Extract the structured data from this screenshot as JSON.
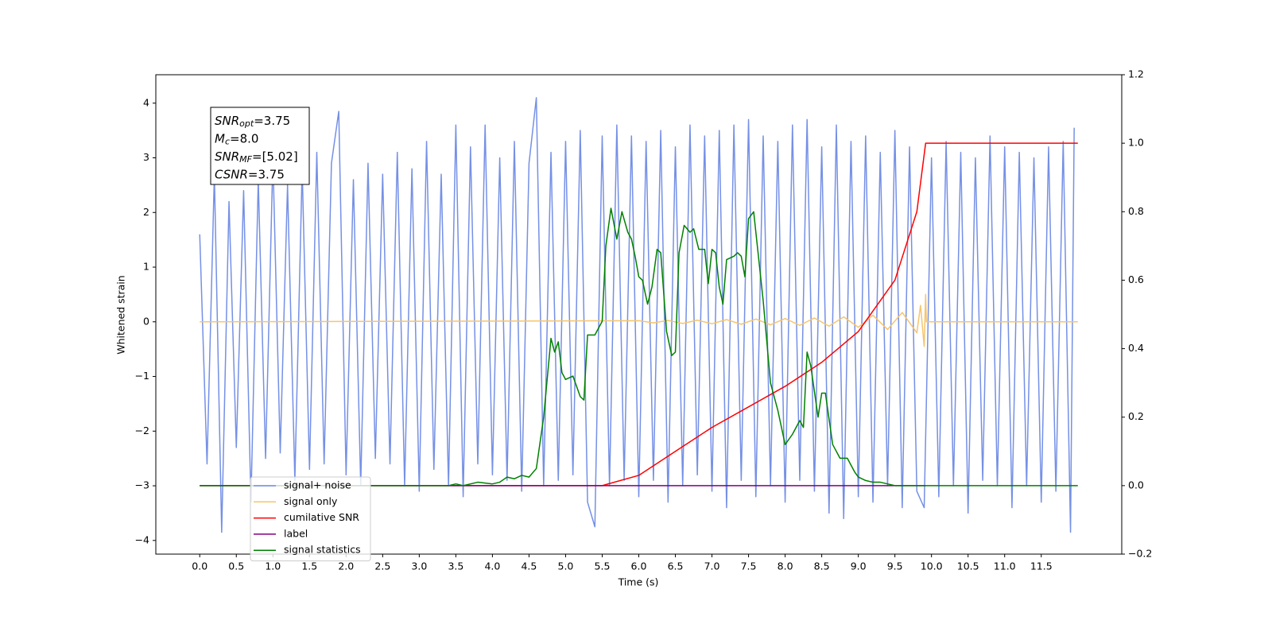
{
  "chart_data": {
    "type": "line",
    "xlabel": "Time (s)",
    "ylabel": "Whitened strain",
    "xlim": [
      -0.6,
      12.6
    ],
    "ylim": [
      -4.25,
      4.52
    ],
    "y2lim": [
      -0.2,
      1.2
    ],
    "xticks": [
      {
        "value": 0,
        "label": "0.0"
      },
      {
        "value": 0.5,
        "label": "0.5"
      },
      {
        "value": 1,
        "label": "1.0"
      },
      {
        "value": 1.5,
        "label": "1.5"
      },
      {
        "value": 2,
        "label": "2.0"
      },
      {
        "value": 2.5,
        "label": "2.5"
      },
      {
        "value": 3,
        "label": "3.0"
      },
      {
        "value": 3.5,
        "label": "3.5"
      },
      {
        "value": 4,
        "label": "4.0"
      },
      {
        "value": 4.5,
        "label": "4.5"
      },
      {
        "value": 5,
        "label": "5.0"
      },
      {
        "value": 5.5,
        "label": "5.5"
      },
      {
        "value": 6,
        "label": "6.0"
      },
      {
        "value": 6.5,
        "label": "6.5"
      },
      {
        "value": 7,
        "label": "7.0"
      },
      {
        "value": 7.5,
        "label": "7.5"
      },
      {
        "value": 8,
        "label": "8.0"
      },
      {
        "value": 8.5,
        "label": "8.5"
      },
      {
        "value": 9,
        "label": "9.0"
      },
      {
        "value": 9.5,
        "label": "9.5"
      },
      {
        "value": 10,
        "label": "10.0"
      },
      {
        "value": 10.5,
        "label": "10.5"
      },
      {
        "value": 11,
        "label": "11.0"
      },
      {
        "value": 11.5,
        "label": "11.5"
      }
    ],
    "yticks": [
      {
        "value": -4,
        "label": "−4"
      },
      {
        "value": -3,
        "label": "−3"
      },
      {
        "value": -2,
        "label": "−2"
      },
      {
        "value": -1,
        "label": "−1"
      },
      0,
      1,
      2,
      3,
      4
    ],
    "y2ticks": [
      {
        "value": -0.2,
        "label": "−0.2"
      },
      {
        "value": 0,
        "label": "0.0"
      },
      {
        "value": 0.2,
        "label": "0.2"
      },
      {
        "value": 0.4,
        "label": "0.4"
      },
      {
        "value": 0.6,
        "label": "0.6"
      },
      {
        "value": 0.8,
        "label": "0.8"
      },
      {
        "value": 1,
        "label": "1.0"
      },
      {
        "value": 1.2,
        "label": "1.2"
      }
    ],
    "annotation": [
      {
        "main": "SNR",
        "sub": "opt",
        "rest": "=3.75"
      },
      {
        "main": "M",
        "sub": "c",
        "rest": "=8.0"
      },
      {
        "main": "SNR",
        "sub": "MF",
        "rest": "=[5.02]"
      },
      {
        "main": "CSNR",
        "rest": "=3.75"
      }
    ],
    "legend": "lower left",
    "series": [
      {
        "name": "signal+ noise",
        "color": "#7590e6",
        "x": [
          0,
          0.1,
          0.2,
          0.3,
          0.4,
          0.5,
          0.6,
          0.7,
          0.8,
          0.9,
          1,
          1.1,
          1.2,
          1.3,
          1.4,
          1.5,
          1.6,
          1.7,
          1.8,
          1.9,
          2,
          2.1,
          2.2,
          2.3,
          2.4,
          2.5,
          2.6,
          2.7,
          2.8,
          2.9,
          3,
          3.1,
          3.2,
          3.3,
          3.4,
          3.5,
          3.6,
          3.7,
          3.8,
          3.9,
          4,
          4.1,
          4.2,
          4.3,
          4.4,
          4.5,
          4.6,
          4.7,
          4.8,
          4.9,
          5,
          5.1,
          5.2,
          5.3,
          5.4,
          5.5,
          5.6,
          5.7,
          5.8,
          5.9,
          6,
          6.1,
          6.2,
          6.3,
          6.4,
          6.5,
          6.6,
          6.7,
          6.8,
          6.9,
          7,
          7.1,
          7.2,
          7.3,
          7.4,
          7.5,
          7.6,
          7.7,
          7.8,
          7.9,
          8,
          8.1,
          8.2,
          8.3,
          8.4,
          8.5,
          8.6,
          8.7,
          8.8,
          8.9,
          9,
          9.1,
          9.2,
          9.3,
          9.4,
          9.5,
          9.6,
          9.7,
          9.8,
          9.9,
          10,
          10.1,
          10.2,
          10.3,
          10.4,
          10.5,
          10.6,
          10.7,
          10.8,
          10.9,
          11,
          11.1,
          11.2,
          11.3,
          11.4,
          11.5,
          11.6,
          11.7,
          11.8,
          11.9,
          11.95
        ],
        "values": [
          1.6,
          -2.6,
          2.7,
          -3.85,
          2.2,
          -2.3,
          2.4,
          -3.3,
          2.6,
          -2.5,
          3.0,
          -2.4,
          2.5,
          -2.9,
          2.8,
          -2.7,
          3.1,
          -2.6,
          2.9,
          3.85,
          -2.8,
          2.6,
          -3.0,
          2.9,
          -2.5,
          2.7,
          -2.6,
          3.1,
          -3.0,
          2.8,
          -3.1,
          3.3,
          -2.7,
          2.7,
          -3.0,
          3.6,
          -3.2,
          3.2,
          -2.6,
          3.6,
          -2.8,
          3.0,
          -2.9,
          3.3,
          -3.1,
          2.9,
          4.1,
          -3.0,
          3.1,
          -2.9,
          3.3,
          -2.8,
          3.5,
          -3.3,
          -3.75,
          3.4,
          -3.0,
          3.6,
          -2.9,
          3.4,
          -3.2,
          3.3,
          -2.9,
          3.5,
          -3.3,
          3.2,
          -3.0,
          3.6,
          -2.8,
          3.4,
          -3.1,
          3.5,
          -3.4,
          3.6,
          -2.9,
          3.7,
          -3.2,
          3.4,
          -3.0,
          3.3,
          -3.3,
          3.6,
          -2.9,
          3.7,
          -3.1,
          3.2,
          -3.5,
          3.6,
          -3.6,
          3.3,
          -3.2,
          3.4,
          -3.3,
          3.1,
          -3.0,
          3.5,
          -3.4,
          3.2,
          -3.1,
          -3.4,
          3.0,
          -3.2,
          3.3,
          -3.0,
          3.1,
          -3.5,
          3.0,
          -2.9,
          3.4,
          -3.0,
          3.2,
          -3.4,
          3.1,
          -3.0,
          3.0,
          -3.3,
          3.2,
          -3.1,
          3.3,
          -3.85,
          3.55
        ]
      },
      {
        "name": "signal only",
        "color": "#f5c56e",
        "x": [
          0,
          6.0,
          6.2,
          6.4,
          6.6,
          6.8,
          7.0,
          7.2,
          7.4,
          7.6,
          7.8,
          8.0,
          8.2,
          8.4,
          8.6,
          8.8,
          9.0,
          9.2,
          9.4,
          9.6,
          9.8,
          9.85,
          9.9,
          9.92,
          9.93,
          12.0
        ],
        "values": [
          0,
          0.02,
          -0.02,
          0.025,
          -0.03,
          0.03,
          -0.035,
          0.04,
          -0.045,
          0.05,
          -0.055,
          0.06,
          -0.065,
          0.07,
          -0.08,
          0.09,
          -0.1,
          0.12,
          -0.14,
          0.17,
          -0.2,
          0.3,
          -0.45,
          0.5,
          0,
          0
        ]
      },
      {
        "name": "cumilative SNR",
        "color": "#ff0000",
        "axis": "y2",
        "x": [
          0,
          5.5,
          6.0,
          6.5,
          7.0,
          7.5,
          8.0,
          8.5,
          9.0,
          9.5,
          9.8,
          9.92,
          12.0
        ],
        "values": [
          0,
          0,
          0.03,
          0.1,
          0.17,
          0.23,
          0.29,
          0.36,
          0.45,
          0.6,
          0.8,
          1.0,
          1.0
        ]
      },
      {
        "name": "label",
        "color": "#800080",
        "axis": "y2",
        "x": [
          0,
          9.92
        ],
        "values": [
          0,
          0
        ]
      },
      {
        "name": "signal statistics",
        "color": "#008000",
        "axis": "y2",
        "x": [
          0,
          3.4,
          3.5,
          3.6,
          3.8,
          4.0,
          4.1,
          4.2,
          4.3,
          4.4,
          4.5,
          4.6,
          4.7,
          4.8,
          4.85,
          4.9,
          4.95,
          5.0,
          5.1,
          5.2,
          5.25,
          5.3,
          5.4,
          5.5,
          5.55,
          5.62,
          5.7,
          5.77,
          5.85,
          5.9,
          5.95,
          6.0,
          6.05,
          6.12,
          6.18,
          6.25,
          6.3,
          6.38,
          6.45,
          6.5,
          6.55,
          6.62,
          6.7,
          6.75,
          6.82,
          6.9,
          6.95,
          7.0,
          7.05,
          7.1,
          7.15,
          7.2,
          7.3,
          7.35,
          7.4,
          7.45,
          7.5,
          7.57,
          7.7,
          7.8,
          7.9,
          8.0,
          8.1,
          8.2,
          8.25,
          8.3,
          8.35,
          8.45,
          8.5,
          8.55,
          8.65,
          8.75,
          8.85,
          8.95,
          9.0,
          9.1,
          9.2,
          9.3,
          9.4,
          9.5,
          12.0
        ],
        "values": [
          0,
          0,
          0.005,
          0,
          0.01,
          0.005,
          0.01,
          0.025,
          0.02,
          0.03,
          0.025,
          0.05,
          0.2,
          0.43,
          0.39,
          0.42,
          0.33,
          0.31,
          0.32,
          0.26,
          0.25,
          0.44,
          0.44,
          0.48,
          0.7,
          0.81,
          0.72,
          0.8,
          0.74,
          0.72,
          0.67,
          0.61,
          0.6,
          0.53,
          0.58,
          0.69,
          0.68,
          0.45,
          0.38,
          0.39,
          0.68,
          0.76,
          0.74,
          0.75,
          0.69,
          0.69,
          0.59,
          0.69,
          0.68,
          0.58,
          0.53,
          0.66,
          0.67,
          0.68,
          0.67,
          0.61,
          0.78,
          0.8,
          0.54,
          0.3,
          0.22,
          0.12,
          0.15,
          0.19,
          0.17,
          0.39,
          0.35,
          0.2,
          0.27,
          0.27,
          0.12,
          0.08,
          0.08,
          0.04,
          0.025,
          0.015,
          0.01,
          0.01,
          0.005,
          0,
          0
        ]
      }
    ]
  }
}
